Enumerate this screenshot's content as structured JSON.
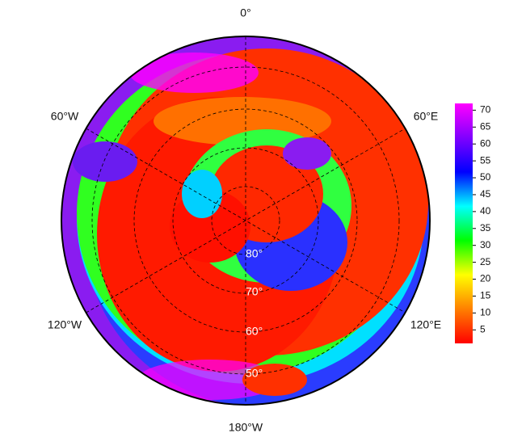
{
  "map": {
    "longitude_labels": [
      "0°",
      "60°E",
      "120°E",
      "180°W",
      "120°W",
      "60°W"
    ],
    "latitude_labels": [
      "50°",
      "60°",
      "70°",
      "80°"
    ],
    "colorbar": {
      "range": [
        1,
        72
      ],
      "ticks": [
        5,
        10,
        15,
        20,
        25,
        30,
        35,
        40,
        45,
        50,
        55,
        60,
        65,
        70
      ],
      "colors": [
        "#ff0000",
        "#ff8000",
        "#ffff00",
        "#00ff00",
        "#00ffff",
        "#0000ff",
        "#8000ff",
        "#ff00ff"
      ]
    }
  }
}
